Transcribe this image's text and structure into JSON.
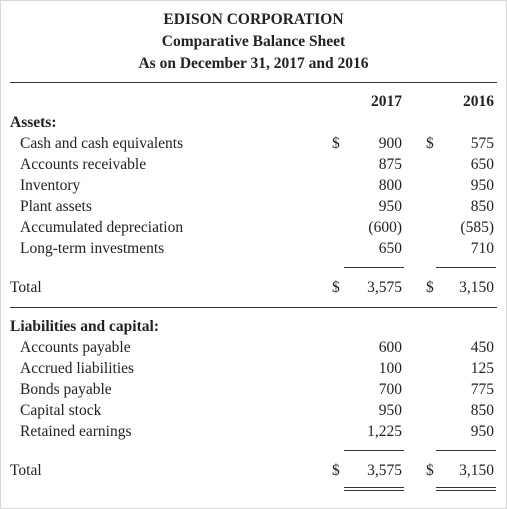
{
  "header": {
    "company": "EDISON CORPORATION",
    "statement": "Comparative Balance Sheet",
    "date": "As on December 31, 2017 and 2016"
  },
  "columns": {
    "year1": "2017",
    "year2": "2016"
  },
  "currency_symbol": "$",
  "assets": {
    "heading": "Assets:",
    "items": [
      {
        "label": "Cash and cash equivalents",
        "v2017": "900",
        "v2016": "575"
      },
      {
        "label": "Accounts receivable",
        "v2017": "875",
        "v2016": "650"
      },
      {
        "label": "Inventory",
        "v2017": "800",
        "v2016": "950"
      },
      {
        "label": "Plant assets",
        "v2017": "950",
        "v2016": "850"
      },
      {
        "label": "Accumulated depreciation",
        "v2017": "(600)",
        "v2016": "(585)"
      },
      {
        "label": "Long-term investments",
        "v2017": "650",
        "v2016": "710"
      }
    ],
    "total_label": "Total",
    "total_2017": "3,575",
    "total_2016": "3,150"
  },
  "liabilities": {
    "heading": "Liabilities and capital:",
    "items": [
      {
        "label": "Accounts payable",
        "v2017": "600",
        "v2016": "450"
      },
      {
        "label": "Accrued liabilities",
        "v2017": "100",
        "v2016": "125"
      },
      {
        "label": "Bonds payable",
        "v2017": "700",
        "v2016": "775"
      },
      {
        "label": "Capital stock",
        "v2017": "950",
        "v2016": "850"
      },
      {
        "label": "Retained earnings",
        "v2017": "1,225",
        "v2016": "950"
      }
    ],
    "total_label": "Total",
    "total_2017": "3,575",
    "total_2016": "3,150"
  }
}
